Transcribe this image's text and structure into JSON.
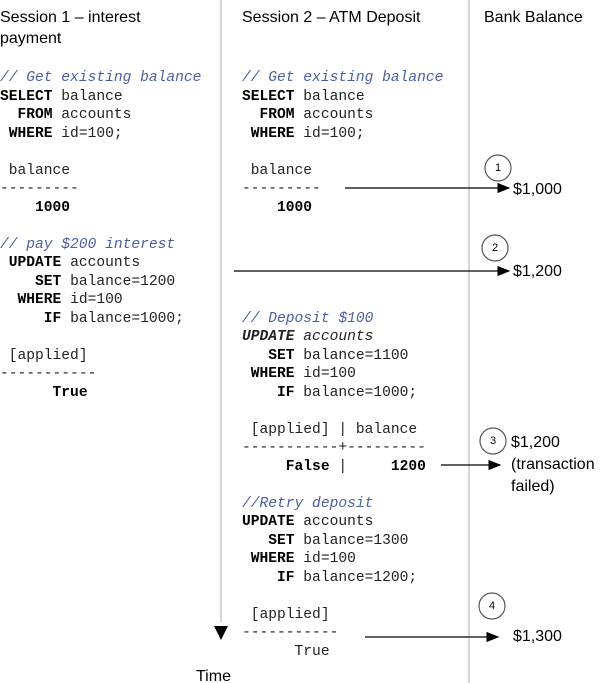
{
  "headers": [
    "Session 1 – interest payment",
    "Session 2 – ATM Deposit",
    "Bank Balance"
  ],
  "session1": {
    "lines": [
      [
        {
          "t": "// Get existing balance",
          "s": "c"
        }
      ],
      [
        {
          "t": "SELECT",
          "s": "b"
        },
        {
          "t": " balance"
        }
      ],
      [
        {
          "t": "  FROM",
          "s": "b"
        },
        {
          "t": " accounts"
        }
      ],
      [
        {
          "t": " WHERE",
          "s": "b"
        },
        {
          "t": " id=100;"
        }
      ],
      [],
      [
        {
          "t": " balance"
        }
      ],
      [
        {
          "t": "---------"
        }
      ],
      [
        {
          "t": "    1000",
          "s": "b"
        }
      ],
      [],
      [
        {
          "t": "// pay $200 interest",
          "s": "c"
        }
      ],
      [
        {
          "t": " UPDATE",
          "s": "b"
        },
        {
          "t": " accounts"
        }
      ],
      [
        {
          "t": "    SET",
          "s": "b"
        },
        {
          "t": " balance=1200"
        }
      ],
      [
        {
          "t": "  WHERE",
          "s": "b"
        },
        {
          "t": " id=100"
        }
      ],
      [
        {
          "t": "     IF",
          "s": "b"
        },
        {
          "t": " balance=1000;"
        }
      ],
      [],
      [
        {
          "t": " [applied]"
        }
      ],
      [
        {
          "t": "-----------"
        }
      ],
      [
        {
          "t": "      True",
          "s": "b"
        }
      ]
    ]
  },
  "session2": {
    "lines": [
      [
        {
          "t": "// Get existing balance",
          "s": "c"
        }
      ],
      [
        {
          "t": "SELECT",
          "s": "b"
        },
        {
          "t": " balance"
        }
      ],
      [
        {
          "t": "  FROM",
          "s": "b"
        },
        {
          "t": " accounts"
        }
      ],
      [
        {
          "t": " WHERE",
          "s": "b"
        },
        {
          "t": " id=100;"
        }
      ],
      [],
      [
        {
          "t": " balance"
        }
      ],
      [
        {
          "t": "---------"
        }
      ],
      [
        {
          "t": "    1000",
          "s": "b"
        }
      ],
      [],
      [],
      [],
      [],
      [],
      [
        {
          "t": "// Deposit $100",
          "s": "c"
        }
      ],
      [
        {
          "t": "UPDATE",
          "s": "bi"
        },
        {
          "t": " accounts",
          "s": "i"
        }
      ],
      [
        {
          "t": "   SET",
          "s": "b"
        },
        {
          "t": " balance=1100"
        }
      ],
      [
        {
          "t": " WHERE",
          "s": "b"
        },
        {
          "t": " id=100"
        }
      ],
      [
        {
          "t": "    IF",
          "s": "b"
        },
        {
          "t": " balance=1000;"
        }
      ],
      [],
      [
        {
          "t": " [applied] | balance"
        }
      ],
      [
        {
          "t": "-----------+---------"
        }
      ],
      [
        {
          "t": "     False",
          "s": "b"
        },
        {
          "t": " |    "
        },
        {
          "t": " 1200",
          "s": "b"
        }
      ],
      [],
      [
        {
          "t": "//Retry deposit",
          "s": "c"
        }
      ],
      [
        {
          "t": "UPDATE",
          "s": "b"
        },
        {
          "t": " accounts"
        }
      ],
      [
        {
          "t": "   SET",
          "s": "b"
        },
        {
          "t": " balance=1300"
        }
      ],
      [
        {
          "t": " WHERE",
          "s": "b"
        },
        {
          "t": " id=100"
        }
      ],
      [
        {
          "t": "    IF",
          "s": "b"
        },
        {
          "t": " balance=1200;"
        }
      ],
      [],
      [
        {
          "t": " [applied]"
        }
      ],
      [
        {
          "t": "-----------"
        }
      ],
      [
        {
          "t": "      True"
        }
      ]
    ]
  },
  "balances": [
    {
      "step": "1",
      "amount": "$1,000"
    },
    {
      "step": "2",
      "amount": "$1,200"
    },
    {
      "step": "3",
      "amount": "$1,200",
      "note": "(transaction failed)"
    },
    {
      "step": "4",
      "amount": "$1,300"
    }
  ],
  "time_label": "Time"
}
